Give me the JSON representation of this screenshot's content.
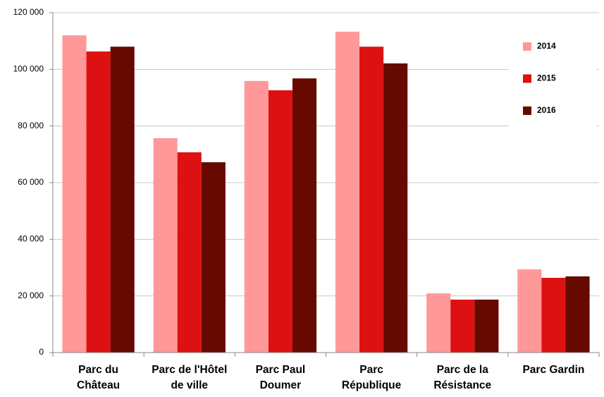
{
  "chart_data": {
    "type": "bar",
    "categories": [
      "Parc du Château",
      "Parc de l'Hôtel de ville",
      "Parc Paul Doumer",
      "Parc République",
      "Parc de la Résistance",
      "Parc Gardin"
    ],
    "series": [
      {
        "name": "2014",
        "color": "#ff9999",
        "values": [
          112000,
          75700,
          95900,
          113300,
          20900,
          29400
        ]
      },
      {
        "name": "2015",
        "color": "#dd1111",
        "values": [
          106300,
          70700,
          92600,
          108000,
          18700,
          26400
        ]
      },
      {
        "name": "2016",
        "color": "#660a00",
        "values": [
          108000,
          67200,
          96800,
          102100,
          18700,
          26900
        ]
      }
    ],
    "ylim": [
      0,
      120000
    ],
    "yticks": [
      0,
      {
        "value": 20000,
        "label": "20 000"
      },
      {
        "value": 40000,
        "label": "40 000"
      },
      {
        "value": 60000,
        "label": "60 000"
      },
      {
        "value": 80000,
        "label": "80 000"
      },
      {
        "value": 100000,
        "label": "100 000"
      },
      {
        "value": 120000,
        "label": "120 000"
      }
    ],
    "grid": true,
    "legend": "top-right"
  }
}
